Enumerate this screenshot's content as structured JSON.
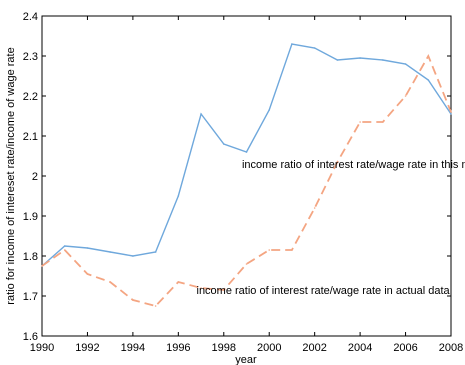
{
  "chart_data": {
    "type": "line",
    "title": "",
    "xlabel": "year",
    "ylabel": "ratio for income of intereset rate/income of wage rate",
    "xlim": [
      1990,
      2008
    ],
    "ylim": [
      1.6,
      2.4
    ],
    "grid": false,
    "legend": "none",
    "xticks": [
      "1990",
      "1992",
      "1994",
      "1996",
      "1998",
      "2000",
      "2002",
      "2004",
      "2006",
      "2008"
    ],
    "yticks": [
      "1.6",
      "1.7",
      "1.8",
      "1.9",
      "2",
      "2.1",
      "2.2",
      "2.3",
      "2.4"
    ],
    "x": [
      1990,
      1991,
      1992,
      1993,
      1994,
      1995,
      1996,
      1997,
      1998,
      1999,
      2000,
      2001,
      2002,
      2003,
      2004,
      2005,
      2006,
      2007,
      2008
    ],
    "series": [
      {
        "values": [
          1.775,
          1.825,
          1.82,
          1.81,
          1.8,
          1.81,
          1.95,
          2.155,
          2.08,
          2.06,
          2.165,
          2.33,
          2.32,
          2.29,
          2.295,
          2.29,
          2.28,
          2.24,
          2.155
        ],
        "color": "#6fa8dc",
        "style": "solid"
      },
      {
        "values": [
          1.775,
          1.815,
          1.755,
          1.735,
          1.69,
          1.675,
          1.735,
          1.72,
          1.715,
          1.78,
          1.815,
          1.815,
          1.92,
          2.035,
          2.135,
          2.135,
          2.2,
          2.3,
          2.16
        ],
        "color": "#f4a582",
        "style": "dashed"
      }
    ],
    "annotations": [
      {
        "text": "income ratio of interest rate/wage rate in this model",
        "x": 1998.8,
        "y": 2.02
      },
      {
        "text": "income ratio of interest rate/wage rate in actual data",
        "x": 1996.8,
        "y": 1.705
      }
    ]
  }
}
